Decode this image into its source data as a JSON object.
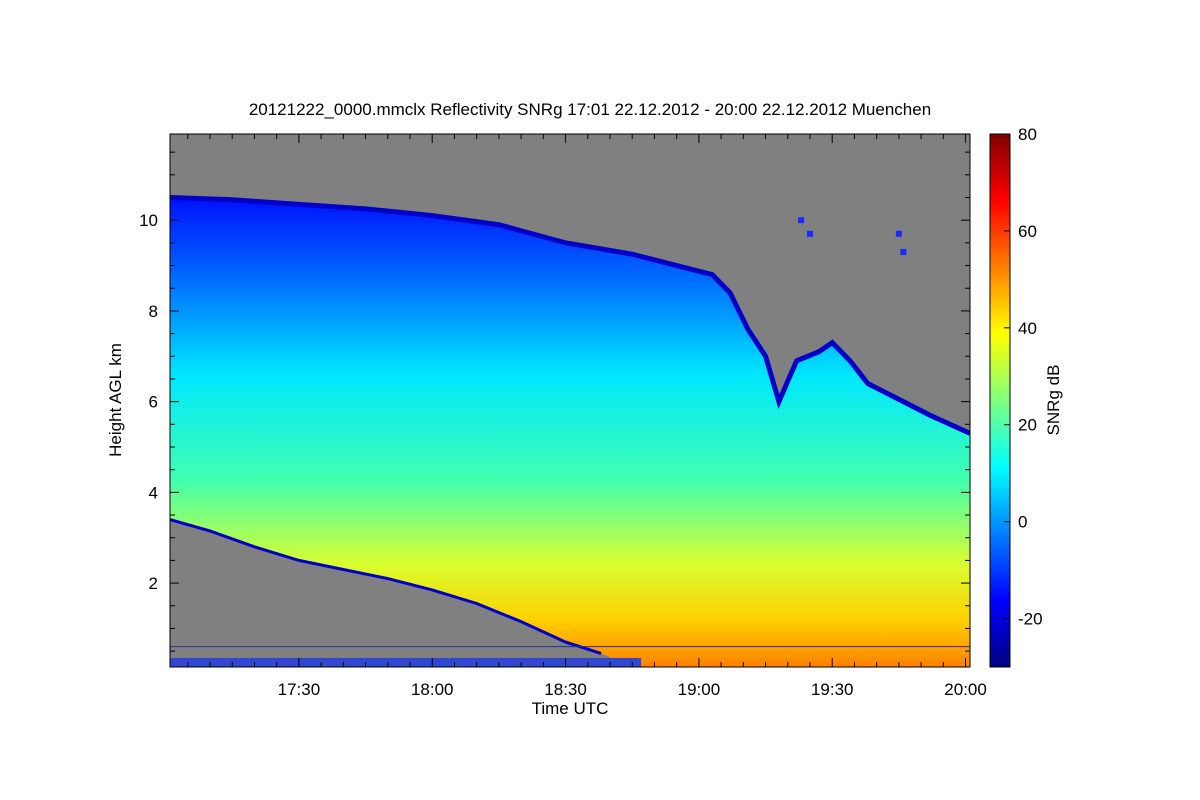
{
  "chart_data": {
    "type": "heatmap",
    "title": "20121222_0000.mmclx Reflectivity SNRg   17:01 22.12.2012 - 20:00 22.12.2012 Muenchen",
    "xlabel": "Time UTC",
    "ylabel": "Height AGL km",
    "x_range": [
      "17:01",
      "20:01"
    ],
    "x_range_minutes": [
      1021,
      1201
    ],
    "x_ticks": [
      {
        "label": "17:30",
        "minutes": 1050
      },
      {
        "label": "18:00",
        "minutes": 1080
      },
      {
        "label": "18:30",
        "minutes": 1110
      },
      {
        "label": "19:00",
        "minutes": 1140
      },
      {
        "label": "19:30",
        "minutes": 1170
      },
      {
        "label": "20:00",
        "minutes": 1200
      }
    ],
    "ylim": [
      0.15,
      11.9
    ],
    "y_ticks": [
      2,
      4,
      6,
      8,
      10
    ],
    "colorbar": {
      "label": "SNRg dB",
      "range": [
        -30,
        80
      ],
      "ticks": [
        -20,
        0,
        20,
        40,
        60,
        80
      ],
      "colormap": "jet",
      "no_signal_color": "#808080"
    },
    "echo_top_km": [
      {
        "minutes": 1021,
        "km": 10.5
      },
      {
        "minutes": 1035,
        "km": 10.45
      },
      {
        "minutes": 1050,
        "km": 10.35
      },
      {
        "minutes": 1065,
        "km": 10.25
      },
      {
        "minutes": 1080,
        "km": 10.1
      },
      {
        "minutes": 1095,
        "km": 9.9
      },
      {
        "minutes": 1110,
        "km": 9.5
      },
      {
        "minutes": 1125,
        "km": 9.25
      },
      {
        "minutes": 1135,
        "km": 9.0
      },
      {
        "minutes": 1143,
        "km": 8.8
      },
      {
        "minutes": 1147,
        "km": 8.4
      },
      {
        "minutes": 1151,
        "km": 7.6
      },
      {
        "minutes": 1155,
        "km": 7.0
      },
      {
        "minutes": 1158,
        "km": 6.0
      },
      {
        "minutes": 1162,
        "km": 6.9
      },
      {
        "minutes": 1167,
        "km": 7.1
      },
      {
        "minutes": 1170,
        "km": 7.3
      },
      {
        "minutes": 1174,
        "km": 6.9
      },
      {
        "minutes": 1178,
        "km": 6.4
      },
      {
        "minutes": 1182,
        "km": 6.2
      },
      {
        "minutes": 1186,
        "km": 6.0
      },
      {
        "minutes": 1192,
        "km": 5.7
      },
      {
        "minutes": 1201,
        "km": 5.3
      }
    ],
    "echo_base_km": [
      {
        "minutes": 1021,
        "km": 3.4
      },
      {
        "minutes": 1030,
        "km": 3.15
      },
      {
        "minutes": 1040,
        "km": 2.8
      },
      {
        "minutes": 1050,
        "km": 2.5
      },
      {
        "minutes": 1060,
        "km": 2.3
      },
      {
        "minutes": 1070,
        "km": 2.1
      },
      {
        "minutes": 1080,
        "km": 1.85
      },
      {
        "minutes": 1090,
        "km": 1.55
      },
      {
        "minutes": 1100,
        "km": 1.15
      },
      {
        "minutes": 1110,
        "km": 0.7
      },
      {
        "minutes": 1118,
        "km": 0.45
      },
      {
        "minutes": 1125,
        "km": 0.15
      },
      {
        "minutes": 1201,
        "km": 0.15
      }
    ],
    "isolated_echoes": [
      {
        "minutes": 1163,
        "km": 10.0
      },
      {
        "minutes": 1165,
        "km": 9.7
      },
      {
        "minutes": 1185,
        "km": 9.7
      },
      {
        "minutes": 1186,
        "km": 9.3
      }
    ],
    "surface_line_km": 0.6
  }
}
